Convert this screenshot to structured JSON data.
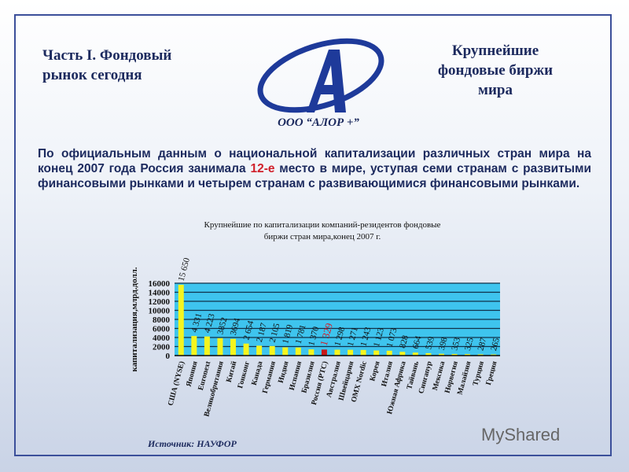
{
  "header": {
    "left_title_line1": "Часть I. Фондовый",
    "left_title_line2": "рынок сегодня",
    "right_title_line1": "Крупнейшие",
    "right_title_line2": "фондовые биржи",
    "right_title_line3": "мира",
    "company": "ООО “АЛОР +”"
  },
  "paragraph": {
    "before": "По официальным данным о национальной капитализации различных стран мира на конец 2007 года Россия занимала ",
    "highlight": "12-е",
    "after": " место в мире, уступая семи странам с развитыми финансовыми рынками и четырем странам с развивающимися финансовыми рынками."
  },
  "source": "Источник: НАУФОР",
  "watermark": "MyShared",
  "colors": {
    "bar": "#f5f51e",
    "highlight_bar": "#c81818",
    "plot_bg": "#3ec4ee",
    "text": "#1c2a5e"
  },
  "chart_data": {
    "type": "bar",
    "title": "Крупнейшие по капитализации компаний-резидентов фондовые биржи стран мира,конец 2007 г.",
    "title_line1": "Крупнейшие по капитализации компаний-резидентов фондовые",
    "title_line2": "биржи стран мира,конец 2007 г.",
    "ylabel": "капитализация,млрд.долл.",
    "ylim": [
      0,
      16000
    ],
    "yticks": [
      0,
      2000,
      4000,
      6000,
      8000,
      10000,
      12000,
      14000,
      16000
    ],
    "grid": true,
    "categories": [
      "США (NYSE)",
      "Япония",
      "Euronext",
      "Великобритания",
      "Китай",
      "Гонконг",
      "Канада",
      "Германия",
      "Индия",
      "Испания",
      "Бразилия",
      "Россия (РТС)",
      "Австралия",
      "Швейцария",
      "OMX Nordic",
      "Корея",
      "Италия",
      "Южная Африка",
      "Тайвань",
      "Сингапур",
      "Мексика",
      "Норвегия",
      "Малайзия",
      "Турция",
      "Греция"
    ],
    "values": [
      15650,
      4331,
      4223,
      3852,
      3694,
      2654,
      2187,
      2105,
      1819,
      1781,
      1370,
      1329,
      1298,
      1271,
      1243,
      1123,
      1073,
      828,
      664,
      539,
      398,
      353,
      325,
      287,
      265
    ],
    "data_labels": [
      "15 650",
      "4 331",
      "4 223",
      "3852",
      "3694",
      "2 654",
      "2 187",
      "2 105",
      "1 819",
      "1 781",
      "1 370",
      "1 329",
      "1 298",
      "1 271",
      "1 243",
      "1 123",
      "1 073",
      "828",
      "664",
      "539",
      "398",
      "353",
      "325",
      "287",
      "265"
    ],
    "highlight_index": 11
  }
}
